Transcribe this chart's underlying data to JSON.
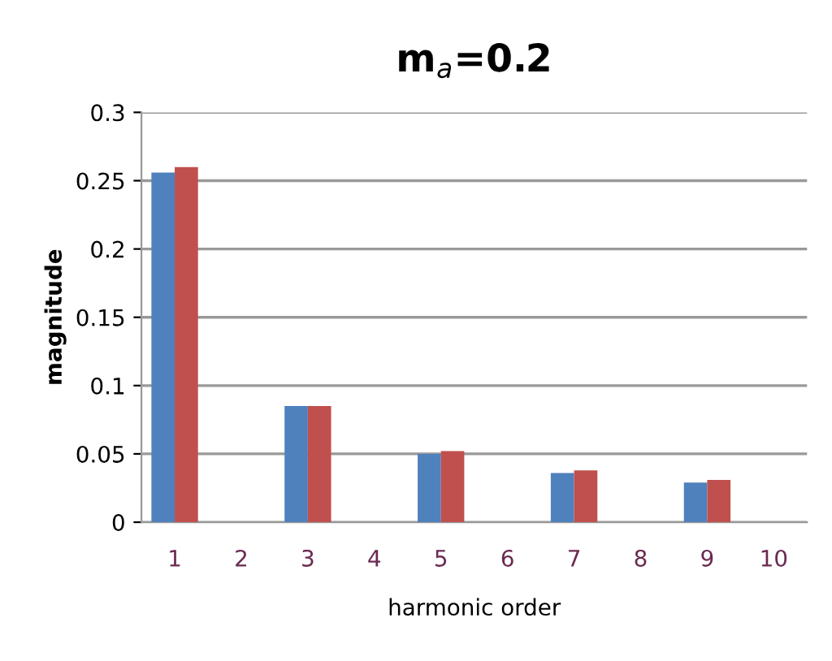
{
  "chart_data": {
    "type": "bar",
    "title": "m$_{a}$=0.2",
    "xlabel": "harmonic order",
    "ylabel": "magnitude",
    "categories": [
      "1",
      "2",
      "3",
      "4",
      "5",
      "6",
      "7",
      "8",
      "9",
      "10"
    ],
    "series": [
      {
        "color": "#4f81bd",
        "values": [
          0.256,
          0,
          0.085,
          0,
          0.05,
          0,
          0.036,
          0,
          0.029,
          0
        ]
      },
      {
        "color": "#c0504d",
        "values": [
          0.26,
          0,
          0.085,
          0,
          0.052,
          0,
          0.038,
          0,
          0.031,
          0
        ]
      }
    ],
    "ylim": [
      0,
      0.3
    ],
    "yticks": [
      0,
      0.05,
      0.1,
      0.15,
      0.2,
      0.25,
      0.3
    ],
    "grid": "y"
  }
}
